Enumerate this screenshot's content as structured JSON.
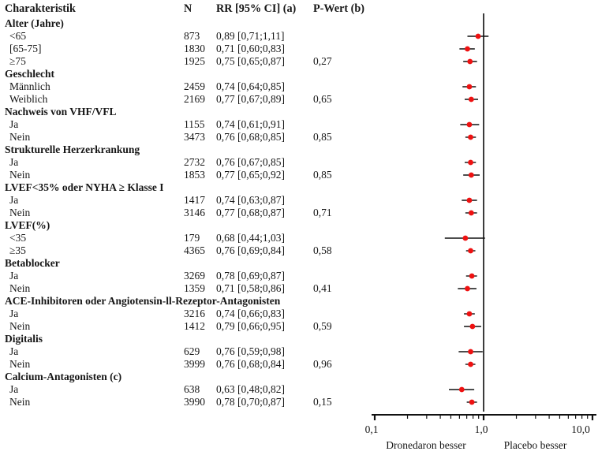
{
  "table": {
    "headers": {
      "characteristic": "Charakteristik",
      "n": "N",
      "rr": "RR [95% CI] (a)",
      "p": "P-Wert (b)"
    }
  },
  "plot": {
    "x_axis": {
      "scale": "log10",
      "major_ticks": [
        {
          "label": "0,1",
          "value": 0.1
        },
        {
          "label": "1,0",
          "value": 1.0
        },
        {
          "label": "10,0",
          "value": 10.0
        }
      ],
      "minor_ticks": [
        0.2,
        0.3,
        0.4,
        0.5,
        0.6,
        0.7,
        0.8,
        0.9,
        2,
        3,
        4,
        5,
        6,
        7,
        8,
        9
      ]
    },
    "reference_line_value": 1.0,
    "left_direction_label": "Dronedaron besser",
    "right_direction_label": "Placebo besser",
    "marker_color": "#ee1111",
    "line_color": "#111111",
    "reference_line_color": "#3c3c3c"
  },
  "chart_data": {
    "type": "scatter",
    "variant": "forest-plot",
    "x_scale": "log10",
    "x_range": [
      0.1,
      10.0
    ],
    "xlabel_left": "Dronedaron besser",
    "xlabel_right": "Placebo besser",
    "reference_value": 1.0,
    "rows": [
      {
        "kind": "group",
        "label": "Alter (Jahre)"
      },
      {
        "kind": "data",
        "label": "<65",
        "n": "873",
        "rr_text": "0,89 [0,71;1,11]",
        "p": "",
        "est": 0.89,
        "lo": 0.71,
        "hi": 1.11
      },
      {
        "kind": "data",
        "label": "[65-75]",
        "n": "1830",
        "rr_text": "0,71 [0,60;0,83]",
        "p": "",
        "est": 0.71,
        "lo": 0.6,
        "hi": 0.83
      },
      {
        "kind": "data",
        "label": "≥75",
        "n": "1925",
        "rr_text": "0,75 [0,65;0,87]",
        "p": "0,27",
        "est": 0.75,
        "lo": 0.65,
        "hi": 0.87
      },
      {
        "kind": "group",
        "label": "Geschlecht"
      },
      {
        "kind": "data",
        "label": "Männlich",
        "n": "2459",
        "rr_text": "0,74 [0,64;0,85]",
        "p": "",
        "est": 0.74,
        "lo": 0.64,
        "hi": 0.85
      },
      {
        "kind": "data",
        "label": "Weiblich",
        "n": "2169",
        "rr_text": "0,77 [0,67;0,89]",
        "p": "0,65",
        "est": 0.77,
        "lo": 0.67,
        "hi": 0.89
      },
      {
        "kind": "group",
        "label": "Nachweis von VHF/VFL"
      },
      {
        "kind": "data",
        "label": "Ja",
        "n": "1155",
        "rr_text": "0,74 [0,61;0,91]",
        "p": "",
        "est": 0.74,
        "lo": 0.61,
        "hi": 0.91
      },
      {
        "kind": "data",
        "label": "Nein",
        "n": "3473",
        "rr_text": "0,76 [0,68;0,85]",
        "p": "0,85",
        "est": 0.76,
        "lo": 0.68,
        "hi": 0.85
      },
      {
        "kind": "group",
        "label": "Strukturelle Herzerkrankung"
      },
      {
        "kind": "data",
        "label": "Ja",
        "n": "2732",
        "rr_text": "0,76 [0,67;0,85]",
        "p": "",
        "est": 0.76,
        "lo": 0.67,
        "hi": 0.85
      },
      {
        "kind": "data",
        "label": "Nein",
        "n": "1853",
        "rr_text": "0,77 [0,65;0,92]",
        "p": "0,85",
        "est": 0.77,
        "lo": 0.65,
        "hi": 0.92
      },
      {
        "kind": "group",
        "label": "LVEF<35% oder NYHA ≥ Klasse I"
      },
      {
        "kind": "data",
        "label": "Ja",
        "n": "1417",
        "rr_text": "0,74 [0,63;0,87]",
        "p": "",
        "est": 0.74,
        "lo": 0.63,
        "hi": 0.87
      },
      {
        "kind": "data",
        "label": "Nein",
        "n": "3146",
        "rr_text": "0,77 [0,68;0,87]",
        "p": "0,71",
        "est": 0.77,
        "lo": 0.68,
        "hi": 0.87
      },
      {
        "kind": "group",
        "label": "LVEF(%)"
      },
      {
        "kind": "data",
        "label": "<35",
        "n": "179",
        "rr_text": "0,68 [0,44;1,03]",
        "p": "",
        "est": 0.68,
        "lo": 0.44,
        "hi": 1.03
      },
      {
        "kind": "data",
        "label": "≥35",
        "n": "4365",
        "rr_text": "0,76 [0,69;0,84]",
        "p": "0,58",
        "est": 0.76,
        "lo": 0.69,
        "hi": 0.84
      },
      {
        "kind": "group",
        "label": "Betablocker"
      },
      {
        "kind": "data",
        "label": "Ja",
        "n": "3269",
        "rr_text": "0,78 [0,69;0,87]",
        "p": "",
        "est": 0.78,
        "lo": 0.69,
        "hi": 0.87
      },
      {
        "kind": "data",
        "label": "Nein",
        "n": "1359",
        "rr_text": "0,71 [0,58;0,86]",
        "p": "0,41",
        "est": 0.71,
        "lo": 0.58,
        "hi": 0.86
      },
      {
        "kind": "group",
        "label": "ACE-Inhibitoren oder Angiotensin-ll-Rezeptor-Antagonisten"
      },
      {
        "kind": "data",
        "label": "Ja",
        "n": "3216",
        "rr_text": "0,74 [0,66;0,83]",
        "p": "",
        "est": 0.74,
        "lo": 0.66,
        "hi": 0.83
      },
      {
        "kind": "data",
        "label": "Nein",
        "n": "1412",
        "rr_text": "0,79 [0,66;0,95]",
        "p": "0,59",
        "est": 0.79,
        "lo": 0.66,
        "hi": 0.95
      },
      {
        "kind": "group",
        "label": "Digitalis"
      },
      {
        "kind": "data",
        "label": "Ja",
        "n": "629",
        "rr_text": "0,76 [0,59;0,98]",
        "p": "",
        "est": 0.76,
        "lo": 0.59,
        "hi": 0.98
      },
      {
        "kind": "data",
        "label": "Nein",
        "n": "3999",
        "rr_text": "0,76 [0,68;0,84]",
        "p": "0,96",
        "est": 0.76,
        "lo": 0.68,
        "hi": 0.84
      },
      {
        "kind": "group",
        "label": "Calcium-Antagonisten (c)"
      },
      {
        "kind": "data",
        "label": "Ja",
        "n": "638",
        "rr_text": "0,63 [0,48;0,82]",
        "p": "",
        "est": 0.63,
        "lo": 0.48,
        "hi": 0.82
      },
      {
        "kind": "data",
        "label": "Nein",
        "n": "3990",
        "rr_text": "0,78 [0,70;0,87]",
        "p": "0,15",
        "est": 0.78,
        "lo": 0.7,
        "hi": 0.87
      }
    ]
  }
}
